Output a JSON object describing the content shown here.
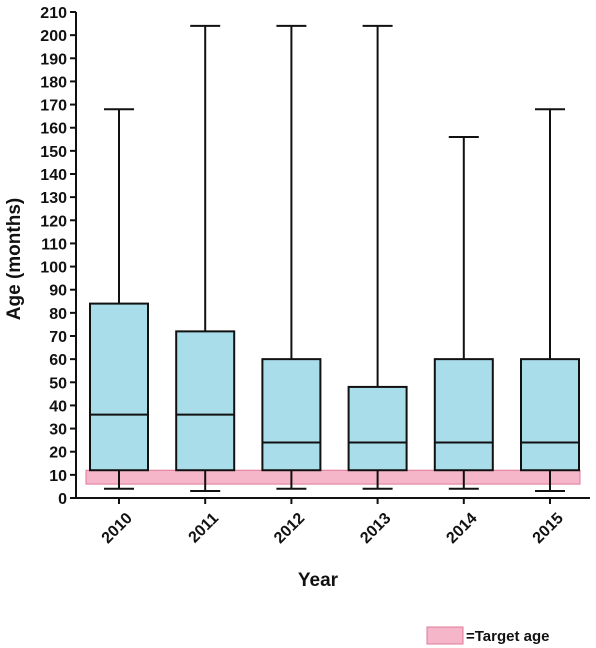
{
  "chart_data": {
    "type": "box",
    "xlabel": "Year",
    "ylabel": "Age (months)",
    "ylim": [
      0,
      210
    ],
    "ytick_step": 10,
    "categories": [
      "2010",
      "2011",
      "2012",
      "2013",
      "2014",
      "2015"
    ],
    "boxes": [
      {
        "category": "2010",
        "min": 4,
        "q1": 12,
        "median": 36,
        "q3": 84,
        "max": 168
      },
      {
        "category": "2011",
        "min": 3,
        "q1": 12,
        "median": 36,
        "q3": 72,
        "max": 204
      },
      {
        "category": "2012",
        "min": 4,
        "q1": 12,
        "median": 24,
        "q3": 60,
        "max": 204
      },
      {
        "category": "2013",
        "min": 4,
        "q1": 12,
        "median": 24,
        "q3": 48,
        "max": 204
      },
      {
        "category": "2014",
        "min": 4,
        "q1": 12,
        "median": 24,
        "q3": 60,
        "max": 156
      },
      {
        "category": "2015",
        "min": 3,
        "q1": 12,
        "median": 24,
        "q3": 60,
        "max": 168
      }
    ],
    "target_band": {
      "from": 6,
      "to": 12
    },
    "legend": {
      "label": "=Target age",
      "placement": "bottom-right"
    },
    "colors": {
      "box_fill": "#a8dde9",
      "target_fill": "#f4b6c8",
      "target_stroke": "#e07a9a",
      "line": "#111111"
    }
  }
}
